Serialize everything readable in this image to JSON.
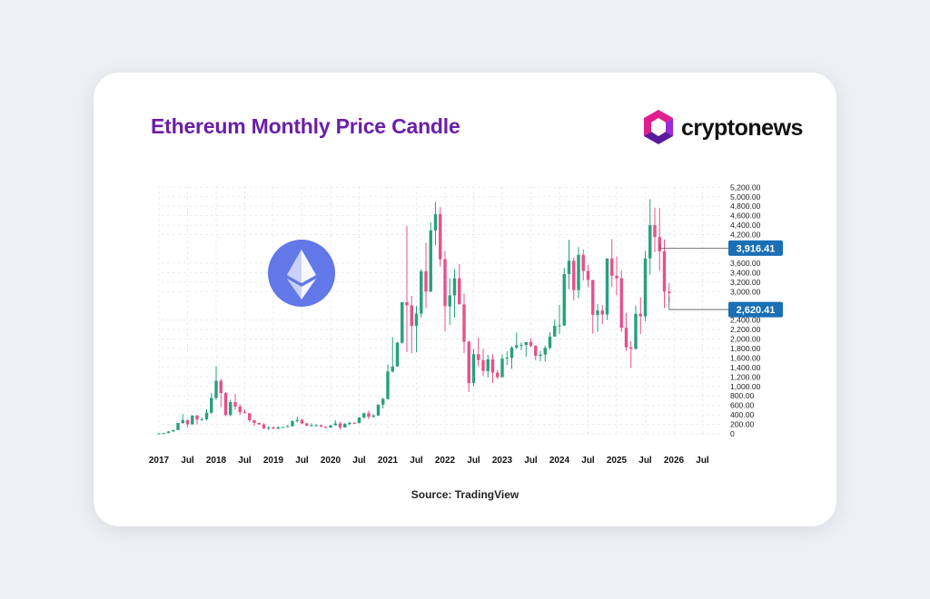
{
  "page": {
    "title": "Ethereum Monthly Price Candle",
    "brand": "cryptonews",
    "source": "Source: TradingView"
  },
  "chart_data": {
    "type": "candlestick",
    "title": "Ethereum Monthly Price Candle",
    "ylim": [
      -100,
      5200
    ],
    "grid": true,
    "x_ticks": [
      "2017",
      "Jul",
      "2018",
      "Jul",
      "2019",
      "Jul",
      "2020",
      "Jul",
      "2021",
      "Jul",
      "2022",
      "Jul",
      "2023",
      "Jul",
      "2024",
      "Jul",
      "2025",
      "Jul",
      "2026",
      "Jul"
    ],
    "y_ticks": [
      "5,200.00",
      "5,000.00",
      "4,800.00",
      "4,600.00",
      "4,400.00",
      "4,200.00",
      "3,600.00",
      "3,400.00",
      "3,200.00",
      "3,000.00",
      "2,400.00",
      "2,200.00",
      "2,000.00",
      "1,800.00",
      "1,600.00",
      "1,400.00",
      "1,200.00",
      "1,000.00",
      "800.00",
      "600.00",
      "400.00",
      "200.00",
      "0"
    ],
    "price_labels": [
      {
        "value": 3916.41,
        "text": "3,916.41"
      },
      {
        "value": 2620.41,
        "text": "2,620.41"
      }
    ],
    "up_color": "#26a17b",
    "down_color": "#e8508a",
    "candles": [
      {
        "date": "2017-01",
        "open": 8,
        "high": 12,
        "low": 7,
        "close": 10.7
      },
      {
        "date": "2017-02",
        "open": 10.7,
        "high": 17,
        "low": 10,
        "close": 16
      },
      {
        "date": "2017-03",
        "open": 16,
        "high": 55,
        "low": 15,
        "close": 50
      },
      {
        "date": "2017-04",
        "open": 50,
        "high": 82,
        "low": 43,
        "close": 80
      },
      {
        "date": "2017-05",
        "open": 80,
        "high": 235,
        "low": 78,
        "close": 230
      },
      {
        "date": "2017-06",
        "open": 230,
        "high": 420,
        "low": 210,
        "close": 290
      },
      {
        "date": "2017-07",
        "open": 290,
        "high": 300,
        "low": 140,
        "close": 200
      },
      {
        "date": "2017-08",
        "open": 200,
        "high": 395,
        "low": 190,
        "close": 385
      },
      {
        "date": "2017-09",
        "open": 385,
        "high": 400,
        "low": 195,
        "close": 300
      },
      {
        "date": "2017-10",
        "open": 300,
        "high": 350,
        "low": 280,
        "close": 305
      },
      {
        "date": "2017-11",
        "open": 305,
        "high": 520,
        "low": 285,
        "close": 445
      },
      {
        "date": "2017-12",
        "open": 445,
        "high": 860,
        "low": 420,
        "close": 755
      },
      {
        "date": "2018-01",
        "open": 755,
        "high": 1420,
        "low": 720,
        "close": 1120
      },
      {
        "date": "2018-02",
        "open": 1120,
        "high": 1160,
        "low": 560,
        "close": 860
      },
      {
        "date": "2018-03",
        "open": 860,
        "high": 880,
        "low": 370,
        "close": 395
      },
      {
        "date": "2018-04",
        "open": 395,
        "high": 720,
        "low": 370,
        "close": 670
      },
      {
        "date": "2018-05",
        "open": 670,
        "high": 840,
        "low": 510,
        "close": 575
      },
      {
        "date": "2018-06",
        "open": 575,
        "high": 625,
        "low": 400,
        "close": 455
      },
      {
        "date": "2018-07",
        "open": 455,
        "high": 515,
        "low": 425,
        "close": 435
      },
      {
        "date": "2018-08",
        "open": 435,
        "high": 440,
        "low": 250,
        "close": 285
      },
      {
        "date": "2018-09",
        "open": 285,
        "high": 300,
        "low": 165,
        "close": 230
      },
      {
        "date": "2018-10",
        "open": 230,
        "high": 235,
        "low": 190,
        "close": 198
      },
      {
        "date": "2018-11",
        "open": 198,
        "high": 225,
        "low": 100,
        "close": 115
      },
      {
        "date": "2018-12",
        "open": 115,
        "high": 160,
        "low": 82,
        "close": 133
      },
      {
        "date": "2019-01",
        "open": 133,
        "high": 160,
        "low": 100,
        "close": 107
      },
      {
        "date": "2019-02",
        "open": 107,
        "high": 165,
        "low": 102,
        "close": 135
      },
      {
        "date": "2019-03",
        "open": 135,
        "high": 145,
        "low": 125,
        "close": 141
      },
      {
        "date": "2019-04",
        "open": 141,
        "high": 185,
        "low": 140,
        "close": 160
      },
      {
        "date": "2019-05",
        "open": 160,
        "high": 285,
        "low": 155,
        "close": 268
      },
      {
        "date": "2019-06",
        "open": 268,
        "high": 360,
        "low": 235,
        "close": 292
      },
      {
        "date": "2019-07",
        "open": 292,
        "high": 320,
        "low": 195,
        "close": 218
      },
      {
        "date": "2019-08",
        "open": 218,
        "high": 235,
        "low": 160,
        "close": 172
      },
      {
        "date": "2019-09",
        "open": 172,
        "high": 225,
        "low": 155,
        "close": 180
      },
      {
        "date": "2019-10",
        "open": 180,
        "high": 200,
        "low": 155,
        "close": 182
      },
      {
        "date": "2019-11",
        "open": 182,
        "high": 193,
        "low": 140,
        "close": 152
      },
      {
        "date": "2019-12",
        "open": 152,
        "high": 152,
        "low": 118,
        "close": 130
      },
      {
        "date": "2020-01",
        "open": 130,
        "high": 185,
        "low": 126,
        "close": 180
      },
      {
        "date": "2020-02",
        "open": 180,
        "high": 288,
        "low": 178,
        "close": 217
      },
      {
        "date": "2020-03",
        "open": 217,
        "high": 255,
        "low": 90,
        "close": 135
      },
      {
        "date": "2020-04",
        "open": 135,
        "high": 228,
        "low": 130,
        "close": 207
      },
      {
        "date": "2020-05",
        "open": 207,
        "high": 255,
        "low": 180,
        "close": 231
      },
      {
        "date": "2020-06",
        "open": 231,
        "high": 250,
        "low": 215,
        "close": 226
      },
      {
        "date": "2020-07",
        "open": 226,
        "high": 347,
        "low": 222,
        "close": 345
      },
      {
        "date": "2020-08",
        "open": 345,
        "high": 445,
        "low": 318,
        "close": 434
      },
      {
        "date": "2020-09",
        "open": 434,
        "high": 487,
        "low": 310,
        "close": 360
      },
      {
        "date": "2020-10",
        "open": 360,
        "high": 420,
        "low": 335,
        "close": 386
      },
      {
        "date": "2020-11",
        "open": 386,
        "high": 620,
        "low": 375,
        "close": 615
      },
      {
        "date": "2020-12",
        "open": 615,
        "high": 760,
        "low": 535,
        "close": 737
      },
      {
        "date": "2021-01",
        "open": 737,
        "high": 1470,
        "low": 715,
        "close": 1315
      },
      {
        "date": "2021-02",
        "open": 1315,
        "high": 2040,
        "low": 1290,
        "close": 1420
      },
      {
        "date": "2021-03",
        "open": 1420,
        "high": 1945,
        "low": 1430,
        "close": 1920
      },
      {
        "date": "2021-04",
        "open": 1920,
        "high": 2780,
        "low": 1900,
        "close": 2775
      },
      {
        "date": "2021-05",
        "open": 2775,
        "high": 4380,
        "low": 1720,
        "close": 2710
      },
      {
        "date": "2021-06",
        "open": 2710,
        "high": 2910,
        "low": 1700,
        "close": 2275
      },
      {
        "date": "2021-07",
        "open": 2275,
        "high": 2700,
        "low": 1720,
        "close": 2535
      },
      {
        "date": "2021-08",
        "open": 2535,
        "high": 3470,
        "low": 2455,
        "close": 3430
      },
      {
        "date": "2021-09",
        "open": 3430,
        "high": 4030,
        "low": 2650,
        "close": 3000
      },
      {
        "date": "2021-10",
        "open": 3000,
        "high": 4460,
        "low": 2990,
        "close": 4290
      },
      {
        "date": "2021-11",
        "open": 4290,
        "high": 4890,
        "low": 3975,
        "close": 4630
      },
      {
        "date": "2021-12",
        "open": 4630,
        "high": 4780,
        "low": 3520,
        "close": 3680
      },
      {
        "date": "2022-01",
        "open": 3680,
        "high": 3860,
        "low": 2160,
        "close": 2690
      },
      {
        "date": "2022-02",
        "open": 2690,
        "high": 3280,
        "low": 2300,
        "close": 2920
      },
      {
        "date": "2022-03",
        "open": 2920,
        "high": 3480,
        "low": 2450,
        "close": 3280
      },
      {
        "date": "2022-04",
        "open": 3280,
        "high": 3580,
        "low": 2780,
        "close": 2730
      },
      {
        "date": "2022-05",
        "open": 2730,
        "high": 2960,
        "low": 1700,
        "close": 1940
      },
      {
        "date": "2022-06",
        "open": 1940,
        "high": 1975,
        "low": 880,
        "close": 1070
      },
      {
        "date": "2022-07",
        "open": 1070,
        "high": 1790,
        "low": 1000,
        "close": 1680
      },
      {
        "date": "2022-08",
        "open": 1680,
        "high": 2030,
        "low": 1420,
        "close": 1555
      },
      {
        "date": "2022-09",
        "open": 1555,
        "high": 1790,
        "low": 1220,
        "close": 1325
      },
      {
        "date": "2022-10",
        "open": 1325,
        "high": 1665,
        "low": 1190,
        "close": 1570
      },
      {
        "date": "2022-11",
        "open": 1570,
        "high": 1680,
        "low": 1075,
        "close": 1290
      },
      {
        "date": "2022-12",
        "open": 1290,
        "high": 1350,
        "low": 1160,
        "close": 1195
      },
      {
        "date": "2023-01",
        "open": 1195,
        "high": 1680,
        "low": 1190,
        "close": 1585
      },
      {
        "date": "2023-02",
        "open": 1585,
        "high": 1740,
        "low": 1450,
        "close": 1605
      },
      {
        "date": "2023-03",
        "open": 1605,
        "high": 1850,
        "low": 1370,
        "close": 1820
      },
      {
        "date": "2023-04",
        "open": 1820,
        "high": 2140,
        "low": 1785,
        "close": 1870
      },
      {
        "date": "2023-05",
        "open": 1870,
        "high": 1930,
        "low": 1760,
        "close": 1875
      },
      {
        "date": "2023-06",
        "open": 1875,
        "high": 1930,
        "low": 1630,
        "close": 1935
      },
      {
        "date": "2023-07",
        "open": 1935,
        "high": 2020,
        "low": 1820,
        "close": 1855
      },
      {
        "date": "2023-08",
        "open": 1855,
        "high": 1870,
        "low": 1550,
        "close": 1645
      },
      {
        "date": "2023-09",
        "open": 1645,
        "high": 1750,
        "low": 1530,
        "close": 1670
      },
      {
        "date": "2023-10",
        "open": 1670,
        "high": 1860,
        "low": 1520,
        "close": 1815
      },
      {
        "date": "2023-11",
        "open": 1815,
        "high": 2140,
        "low": 1780,
        "close": 2050
      },
      {
        "date": "2023-12",
        "open": 2050,
        "high": 2410,
        "low": 2060,
        "close": 2280
      },
      {
        "date": "2024-01",
        "open": 2280,
        "high": 2720,
        "low": 2110,
        "close": 2285
      },
      {
        "date": "2024-02",
        "open": 2285,
        "high": 3500,
        "low": 2270,
        "close": 3370
      },
      {
        "date": "2024-03",
        "open": 3370,
        "high": 4090,
        "low": 3050,
        "close": 3650
      },
      {
        "date": "2024-04",
        "open": 3650,
        "high": 3720,
        "low": 2810,
        "close": 3030
      },
      {
        "date": "2024-05",
        "open": 3030,
        "high": 3940,
        "low": 2860,
        "close": 3775
      },
      {
        "date": "2024-06",
        "open": 3775,
        "high": 3885,
        "low": 3235,
        "close": 3435
      },
      {
        "date": "2024-07",
        "open": 3435,
        "high": 3560,
        "low": 3090,
        "close": 3245
      },
      {
        "date": "2024-08",
        "open": 3245,
        "high": 3230,
        "low": 2110,
        "close": 2510
      },
      {
        "date": "2024-09",
        "open": 2510,
        "high": 2735,
        "low": 2150,
        "close": 2600
      },
      {
        "date": "2024-10",
        "open": 2600,
        "high": 2720,
        "low": 2310,
        "close": 2515
      },
      {
        "date": "2024-11",
        "open": 2515,
        "high": 3690,
        "low": 2400,
        "close": 3700
      },
      {
        "date": "2024-12",
        "open": 3700,
        "high": 4105,
        "low": 3100,
        "close": 3335
      },
      {
        "date": "2025-01",
        "open": 3335,
        "high": 3740,
        "low": 2920,
        "close": 3280
      },
      {
        "date": "2025-02",
        "open": 3280,
        "high": 3445,
        "low": 2150,
        "close": 2235
      },
      {
        "date": "2025-03",
        "open": 2235,
        "high": 2550,
        "low": 1750,
        "close": 1825
      },
      {
        "date": "2025-04",
        "open": 1825,
        "high": 1950,
        "low": 1390,
        "close": 1795
      },
      {
        "date": "2025-05",
        "open": 1795,
        "high": 2700,
        "low": 1770,
        "close": 2530
      },
      {
        "date": "2025-06",
        "open": 2530,
        "high": 2880,
        "low": 2110,
        "close": 2480
      },
      {
        "date": "2025-07",
        "open": 2480,
        "high": 3860,
        "low": 2370,
        "close": 3700
      },
      {
        "date": "2025-08",
        "open": 3700,
        "high": 4950,
        "low": 3350,
        "close": 4400
      },
      {
        "date": "2025-09",
        "open": 4400,
        "high": 4770,
        "low": 3830,
        "close": 4150
      },
      {
        "date": "2025-10",
        "open": 4150,
        "high": 4760,
        "low": 3440,
        "close": 3850
      },
      {
        "date": "2025-11",
        "open": 3850,
        "high": 4100,
        "low": 2650,
        "close": 3000
      },
      {
        "date": "2025-12",
        "open": 3000,
        "high": 3180,
        "low": 2780,
        "close": 2970
      }
    ]
  },
  "colors": {
    "title": "#6a1fa8",
    "price_label_bg": "#1a6fb5",
    "eth_circle": "#6277e8"
  },
  "icons": {
    "eth": "ethereum-logo-icon",
    "brand": "cryptonews-logo-icon"
  }
}
